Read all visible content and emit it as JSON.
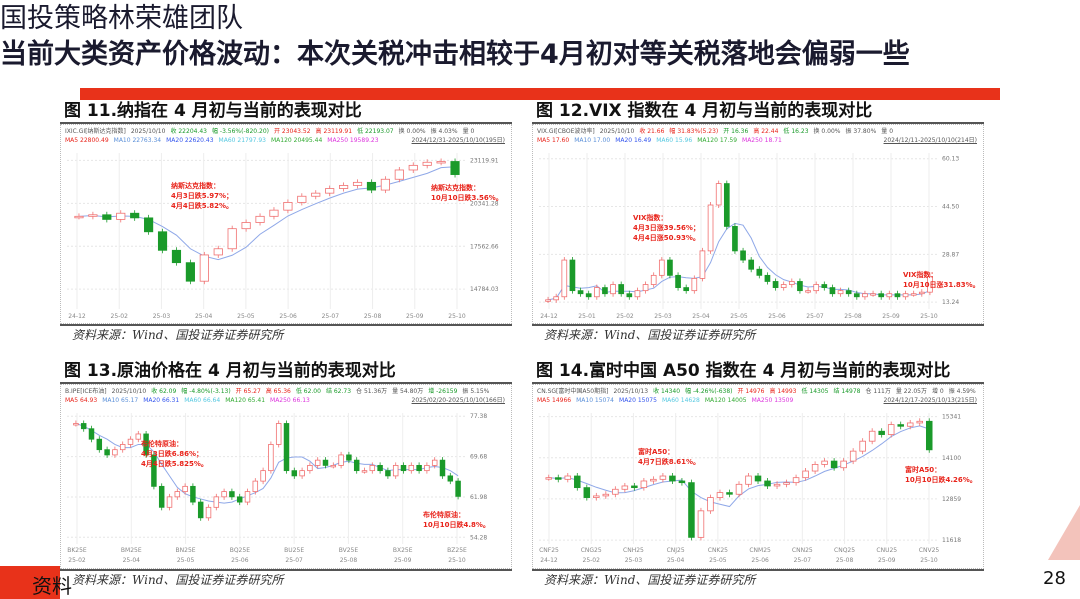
{
  "header": {
    "team": "国投策略林荣雄团队",
    "title": "当前大类资产价格波动：本次关税冲击相较于4月初对等关税落地会偏弱一些"
  },
  "footer": {
    "left_text": "资料",
    "page": "28"
  },
  "colors": {
    "accent": "#e8321a",
    "up": "#f07070",
    "down": "#1a9a2a"
  },
  "panels": [
    {
      "title": "图 11.纳指在 4 月初与当前的表现对比",
      "info1": [
        {
          "t": "IXIC.GI[纳斯达克指数]",
          "c": "#555"
        },
        {
          "t": "2025/10/10",
          "c": "#555"
        },
        {
          "t": "收 22204.43",
          "c": "#1a9a2a"
        },
        {
          "t": "幅 -3.56%(-820.20)",
          "c": "#1a9a2a"
        },
        {
          "t": "开 23043.52",
          "c": "#e8231a"
        },
        {
          "t": "高 23119.91",
          "c": "#e8231a"
        },
        {
          "t": "低 22193.07",
          "c": "#1a9a2a"
        },
        {
          "t": "换 0.00%",
          "c": "#555"
        },
        {
          "t": "振 4.03%",
          "c": "#555"
        },
        {
          "t": "量 0",
          "c": "#555"
        }
      ],
      "info2": [
        {
          "t": "MA5 22800.49",
          "c": "#e8231a"
        },
        {
          "t": "MA10 22763.34",
          "c": "#5a8fd8"
        },
        {
          "t": "MA20 22620.43",
          "c": "#3355ee"
        },
        {
          "t": "MA60 21797.93",
          "c": "#55c8e0"
        },
        {
          "t": "MA120 20495.44",
          "c": "#33aa33"
        },
        {
          "t": "MA250 19589.23",
          "c": "#dd33dd"
        }
      ],
      "range": "2024/12/31-2025/10/10(195日)",
      "annotations": [
        {
          "lines": [
            "纳斯达克指数：",
            "4月3日跌5.97%；",
            "4月4日跌5.82%。"
          ]
        },
        {
          "lines": [
            "纳斯达克指数：",
            "10月10日跌3.56%。"
          ]
        }
      ],
      "source": "资料来源：Wind、国投证券证券研究所"
    },
    {
      "title": "图 12.VIX 指数在 4 月初与当前的表现对比",
      "info1": [
        {
          "t": "VIX.GI[CBOE波动率]",
          "c": "#555"
        },
        {
          "t": "2025/10/10",
          "c": "#555"
        },
        {
          "t": "收 21.66",
          "c": "#e8231a"
        },
        {
          "t": "幅 31.83%(5.23)",
          "c": "#e8231a"
        },
        {
          "t": "开 16.36",
          "c": "#1a9a2a"
        },
        {
          "t": "高 22.44",
          "c": "#e8231a"
        },
        {
          "t": "低 16.23",
          "c": "#1a9a2a"
        },
        {
          "t": "换 0.00%",
          "c": "#555"
        },
        {
          "t": "振 37.80%",
          "c": "#555"
        },
        {
          "t": "量 0",
          "c": "#555"
        }
      ],
      "info2": [
        {
          "t": "MA5 17.60",
          "c": "#e8231a"
        },
        {
          "t": "MA10 17.00",
          "c": "#5a8fd8"
        },
        {
          "t": "MA20 16.49",
          "c": "#3355ee"
        },
        {
          "t": "MA60 15.96",
          "c": "#55c8e0"
        },
        {
          "t": "MA120 17.59",
          "c": "#33aa33"
        },
        {
          "t": "MA250 18.71",
          "c": "#dd33dd"
        }
      ],
      "range": "2024/12/11-2025/10/10(214日)",
      "annotations": [
        {
          "lines": [
            "VIX指数：",
            "4月3日涨39.56%；",
            "4月4日涨50.93%。"
          ]
        },
        {
          "lines": [
            "VIX指数：",
            "10月10日涨31.83%。"
          ]
        }
      ],
      "source": "资料来源：Wind、国投证券证券研究所"
    },
    {
      "title": "图 13.原油价格在 4 月初与当前的表现对比",
      "info1": [
        {
          "t": "B.IPE[ICE布油]",
          "c": "#555"
        },
        {
          "t": "2025/10/10",
          "c": "#555"
        },
        {
          "t": "收 62.09",
          "c": "#1a9a2a"
        },
        {
          "t": "幅 -4.80%(-3.13)",
          "c": "#1a9a2a"
        },
        {
          "t": "开 65.27",
          "c": "#e8231a"
        },
        {
          "t": "高 65.36",
          "c": "#e8231a"
        },
        {
          "t": "低 62.00",
          "c": "#1a9a2a"
        },
        {
          "t": "结 62.73",
          "c": "#1a9a2a"
        },
        {
          "t": "仓 51.36万",
          "c": "#555"
        },
        {
          "t": "量 54.80万",
          "c": "#555"
        },
        {
          "t": "增 -26159",
          "c": "#1a9a2a"
        },
        {
          "t": "振 5.15%",
          "c": "#555"
        }
      ],
      "info2": [
        {
          "t": "MA5 64.93",
          "c": "#e8231a"
        },
        {
          "t": "MA10 65.17",
          "c": "#5a8fd8"
        },
        {
          "t": "MA20 66.31",
          "c": "#3355ee"
        },
        {
          "t": "MA60 66.64",
          "c": "#55c8e0"
        },
        {
          "t": "MA120 65.41",
          "c": "#33aa33"
        },
        {
          "t": "MA250 66.13",
          "c": "#dd33dd"
        }
      ],
      "range": "2025/02/20-2025/10/10(166日)",
      "annotations": [
        {
          "lines": [
            "布伦特原油：",
            "4月3日跌6.86%；",
            "4月4日跌5.825%。"
          ]
        },
        {
          "lines": [
            "布伦特原油：",
            "10月10日跌4.8%。"
          ]
        }
      ],
      "source": "资料来源：Wind、国投证券证券研究所"
    },
    {
      "title": "图 14.富时中国 A50 指数在 4 月初与当前的表现对比",
      "info1": [
        {
          "t": "CN.SG[富时中国A50期指]",
          "c": "#555"
        },
        {
          "t": "2025/10/13",
          "c": "#555"
        },
        {
          "t": "收 14340",
          "c": "#1a9a2a"
        },
        {
          "t": "幅 -4.26%(-638)",
          "c": "#1a9a2a"
        },
        {
          "t": "开 14976",
          "c": "#e8231a"
        },
        {
          "t": "高 14993",
          "c": "#e8231a"
        },
        {
          "t": "低 14305",
          "c": "#1a9a2a"
        },
        {
          "t": "结 14978",
          "c": "#1a9a2a"
        },
        {
          "t": "仓 111万",
          "c": "#555"
        },
        {
          "t": "量 22.05万",
          "c": "#555"
        },
        {
          "t": "增 0",
          "c": "#555"
        },
        {
          "t": "振 4.59%",
          "c": "#555"
        }
      ],
      "info2": [
        {
          "t": "MA5 14966",
          "c": "#e8231a"
        },
        {
          "t": "MA10 15074",
          "c": "#5a8fd8"
        },
        {
          "t": "MA20 15075",
          "c": "#3355ee"
        },
        {
          "t": "MA60 14628",
          "c": "#55c8e0"
        },
        {
          "t": "MA120 14005",
          "c": "#33aa33"
        },
        {
          "t": "MA250 13509",
          "c": "#dd33dd"
        }
      ],
      "range": "2024/12/17-2025/10/13(215日)",
      "annotations": [
        {
          "lines": [
            "富时A50：",
            "4月7日跌8.61%。"
          ]
        },
        {
          "lines": [
            "富时A50：",
            "10月10日跌4.26%。"
          ]
        }
      ],
      "source": "资料来源：Wind、国投证券证券研究所"
    }
  ],
  "chart_data": [
    {
      "type": "candlestick",
      "ylim": [
        13500,
        23600
      ],
      "yticks": [
        "23119.91",
        "20341.28",
        "17562.66",
        "14784.03"
      ],
      "xticks": [
        "24-12",
        "25-02",
        "25-03",
        "25-04",
        "25-05",
        "25-06",
        "25-07",
        "25-08",
        "25-09",
        "25-10"
      ],
      "values": [
        19500,
        19600,
        19300,
        19700,
        19400,
        18500,
        17300,
        16500,
        15300,
        17000,
        17400,
        18700,
        19100,
        19500,
        19900,
        20400,
        20800,
        21000,
        21300,
        21500,
        21700,
        21200,
        21900,
        22500,
        22800,
        23000,
        23050,
        22204
      ]
    },
    {
      "type": "candlestick",
      "ylim": [
        11,
        62
      ],
      "yticks": [
        "60.13",
        "44.50",
        "28.87",
        "13.24"
      ],
      "xticks": [
        "24-12",
        "25-01",
        "25-02",
        "25-03",
        "25-04",
        "25-05",
        "25-06",
        "25-07",
        "25-08",
        "25-09",
        "25-10"
      ],
      "values": [
        14,
        15,
        27,
        17,
        16,
        15,
        18,
        16,
        19,
        16,
        15,
        17,
        19,
        22,
        27,
        22,
        18,
        17,
        21,
        30,
        45,
        52,
        38,
        30,
        27,
        24,
        22,
        20,
        18,
        19,
        20,
        17,
        17,
        19,
        18,
        16,
        17,
        16,
        15,
        16,
        16,
        15,
        16,
        15,
        16,
        16,
        16.5,
        21.66
      ]
    },
    {
      "type": "candlestick",
      "ylim": [
        53,
        78
      ],
      "yticks": [
        "77.38",
        "69.68",
        "61.98",
        "54.28"
      ],
      "xticks": [
        "25-02",
        "25-04",
        "25-05",
        "25-06",
        "25-07",
        "25-08",
        "25-09",
        "25-10"
      ],
      "xticks_contract": [
        "BK25E",
        "BM25E",
        "BN25E",
        "BQ25E",
        "BU25E",
        "BV25E",
        "BX25E",
        "BZ25E"
      ],
      "values": [
        76,
        75,
        73,
        71,
        70,
        71,
        72,
        73,
        74,
        70,
        64,
        60,
        62,
        63,
        64,
        61,
        58,
        60,
        62,
        63,
        62,
        61,
        63,
        65,
        67,
        72,
        76,
        67,
        66,
        67,
        68,
        69,
        68,
        68,
        70,
        69,
        67,
        67,
        68,
        67,
        66,
        68,
        67,
        68,
        67,
        68,
        69,
        66,
        65,
        62.09
      ]
    },
    {
      "type": "candlestick",
      "ylim": [
        11500,
        15450
      ],
      "yticks": [
        "15341",
        "14100",
        "12859",
        "11618"
      ],
      "xticks": [
        "24-12",
        "25-02",
        "25-03",
        "25-04",
        "25-05",
        "25-06",
        "25-07",
        "25-08",
        "25-09",
        "25-10"
      ],
      "xticks_contract": [
        "CNF25",
        "CNG25",
        "CNH25",
        "CNJ25",
        "CNK25",
        "CNM25",
        "CNN25",
        "CNQ25",
        "CNU25",
        "CNV25"
      ],
      "values": [
        13500,
        13450,
        13550,
        13200,
        12900,
        12950,
        13000,
        13150,
        13250,
        13200,
        13400,
        13450,
        13550,
        13400,
        13350,
        11700,
        12500,
        12900,
        13050,
        13000,
        13300,
        13550,
        13400,
        13250,
        13300,
        13350,
        13500,
        13700,
        13900,
        14000,
        13800,
        14000,
        14300,
        14600,
        14900,
        14800,
        15100,
        15050,
        15150,
        15200,
        14340
      ]
    }
  ]
}
